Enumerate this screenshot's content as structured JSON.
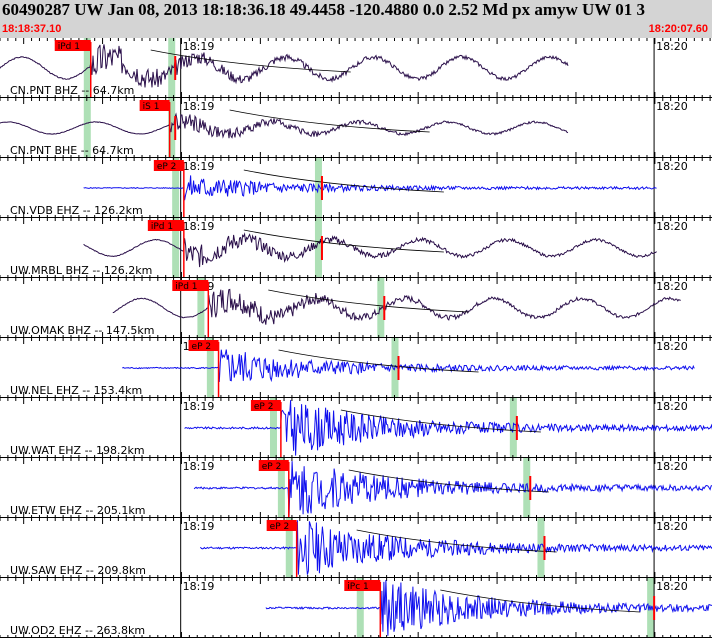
{
  "event": {
    "title": "60490287 UW Jan 08, 2013 18:18:36.18    49.4458 -120.4880  0.0 2.52 Md px amyw UW 01   3",
    "start_time": "18:18:37.10",
    "end_time": "18:20:07.60"
  },
  "time_ticks": {
    "minute_a": "18:19",
    "minute_b": "18:20"
  },
  "colors": {
    "broadband": "#2a0f4a",
    "short_period": "#1010ee",
    "pick": "#ff0000",
    "coda": "#aee0b6",
    "header": "#d4d4d4"
  },
  "traces": [
    {
      "label": "CN.PNT BHZ -- 64.7km",
      "pick": "iPd 1",
      "type": "broadband",
      "data_start_s": 0.0,
      "data_end_s": 72.0,
      "arrival_s": 11.5,
      "coda_s": [
        11.0,
        21.7
      ],
      "amp": 0.4,
      "long_period": true
    },
    {
      "label": "CN.PNT BHE -- 64.7km",
      "pick": "iS 1",
      "type": "broadband",
      "data_start_s": 0.0,
      "data_end_s": 72.0,
      "arrival_s": 21.5,
      "coda_s": [
        11.0,
        21.7
      ],
      "amp": 0.22,
      "long_period": true
    },
    {
      "label": "CN.VDB EHZ -- 126.2km",
      "pick": "eP 2",
      "type": "short_period",
      "data_start_s": 10.6,
      "data_end_s": 83.3,
      "arrival_s": 23.3,
      "coda_s": [
        22.2,
        40.3
      ],
      "amp": 0.2
    },
    {
      "label": "UW.MRBL BHZ -- 126.2km",
      "pick": "iPd 1",
      "type": "broadband",
      "data_start_s": 10.6,
      "data_end_s": 83.3,
      "arrival_s": 23.3,
      "coda_s": [
        22.2,
        40.3
      ],
      "amp": 0.3,
      "long_period": true
    },
    {
      "label": "UW.OMAK BHZ -- 147.5km",
      "pick": "iPd 1",
      "type": "broadband",
      "data_start_s": 14.3,
      "data_end_s": 86.4,
      "arrival_s": 26.4,
      "coda_s": [
        25.4,
        48.2
      ],
      "amp": 0.35,
      "long_period": true
    },
    {
      "label": "UW.NEL EHZ -- 153.4km",
      "pick": "eP 2",
      "type": "short_period",
      "data_start_s": 15.5,
      "data_end_s": 88.1,
      "arrival_s": 27.7,
      "coda_s": [
        26.6,
        50.0
      ],
      "amp": 0.3
    },
    {
      "label": "UW.WAT EHZ -- 198.2km",
      "pick": "eP 2",
      "type": "short_period",
      "data_start_s": 23.4,
      "data_end_s": 96.0,
      "arrival_s": 35.6,
      "coda_s": [
        34.6,
        65.0
      ],
      "amp": 0.45
    },
    {
      "label": "UW.ETW EHZ -- 205.1km",
      "pick": "eP 2",
      "type": "short_period",
      "data_start_s": 24.6,
      "data_end_s": 96.5,
      "arrival_s": 36.6,
      "coda_s": [
        35.6,
        66.7
      ],
      "amp": 0.45
    },
    {
      "label": "UW.SAW EHZ -- 209.8km",
      "pick": "eP 2",
      "type": "short_period",
      "data_start_s": 25.4,
      "data_end_s": 97.5,
      "arrival_s": 37.6,
      "coda_s": [
        36.6,
        68.5
      ],
      "amp": 0.45
    },
    {
      "label": "UW.OD2 EHZ -- 263.8km",
      "pick": "iPc 1",
      "type": "short_period",
      "data_start_s": 33.7,
      "data_end_s": 104.0,
      "arrival_s": 48.2,
      "coda_s": [
        45.6,
        82.4
      ],
      "amp": 0.45
    }
  ]
}
